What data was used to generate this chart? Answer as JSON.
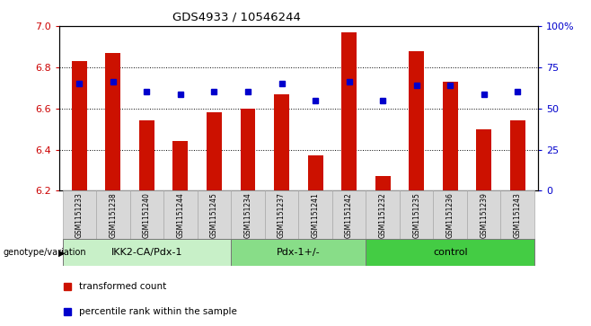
{
  "title": "GDS4933 / 10546244",
  "samples": [
    "GSM1151233",
    "GSM1151238",
    "GSM1151240",
    "GSM1151244",
    "GSM1151245",
    "GSM1151234",
    "GSM1151237",
    "GSM1151241",
    "GSM1151242",
    "GSM1151232",
    "GSM1151235",
    "GSM1151236",
    "GSM1151239",
    "GSM1151243"
  ],
  "red_values": [
    6.83,
    6.87,
    6.54,
    6.44,
    6.58,
    6.6,
    6.67,
    6.37,
    6.97,
    6.27,
    6.88,
    6.73,
    6.5,
    6.54
  ],
  "blue_values": [
    6.72,
    6.73,
    6.68,
    6.67,
    6.68,
    6.68,
    6.72,
    6.64,
    6.73,
    6.64,
    6.71,
    6.71,
    6.67,
    6.68
  ],
  "y_min": 6.2,
  "y_max": 7.0,
  "y_ticks": [
    6.2,
    6.4,
    6.6,
    6.8,
    7.0
  ],
  "y2_ticks": [
    0,
    25,
    50,
    75,
    100
  ],
  "groups": [
    {
      "label": "IKK2-CA/Pdx-1",
      "start": 0,
      "end": 5,
      "color": "#c8f0c8"
    },
    {
      "label": "Pdx-1+/-",
      "start": 5,
      "end": 9,
      "color": "#88dd88"
    },
    {
      "label": "control",
      "start": 9,
      "end": 14,
      "color": "#44cc44"
    }
  ],
  "bar_color": "#cc1100",
  "dot_color": "#0000cc",
  "plot_bg": "#ffffff",
  "sample_cell_color": "#d8d8d8",
  "xlabel_color": "#cc0000",
  "y2label_color": "#0000cc",
  "legend_red": "transformed count",
  "legend_blue": "percentile rank within the sample",
  "genotype_label": "genotype/variation",
  "bar_bottom": 6.2,
  "bar_width": 0.45
}
